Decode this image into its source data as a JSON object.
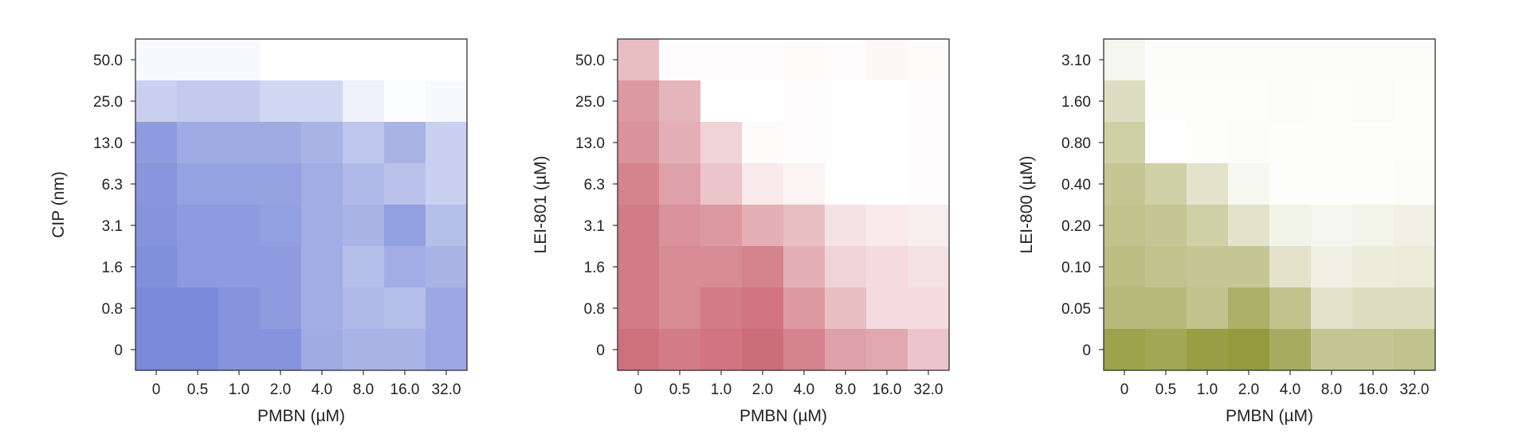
{
  "chart_data": [
    {
      "type": "heatmap",
      "xlabel": "PMBN (µM)",
      "ylabel": "CIP (nm)",
      "x_ticks": [
        "0",
        "0.5",
        "1.0",
        "2.0",
        "4.0",
        "8.0",
        "16.0",
        "32.0"
      ],
      "y_ticks": [
        "50.0",
        "25.0",
        "13.0",
        "6.3",
        "3.1",
        "1.6",
        "0.8",
        "0"
      ],
      "color": "#6f80d6",
      "values": [
        [
          0.05,
          0.05,
          0.05,
          0.0,
          0.0,
          0.0,
          0.0,
          0.0
        ],
        [
          0.4,
          0.45,
          0.45,
          0.35,
          0.35,
          0.12,
          0.02,
          0.05
        ],
        [
          0.85,
          0.72,
          0.72,
          0.72,
          0.65,
          0.5,
          0.65,
          0.4
        ],
        [
          0.9,
          0.8,
          0.8,
          0.8,
          0.7,
          0.6,
          0.52,
          0.4
        ],
        [
          0.92,
          0.85,
          0.85,
          0.82,
          0.7,
          0.65,
          0.82,
          0.55
        ],
        [
          0.95,
          0.85,
          0.85,
          0.85,
          0.7,
          0.55,
          0.7,
          0.65
        ],
        [
          1.0,
          1.0,
          0.92,
          0.85,
          0.7,
          0.6,
          0.55,
          0.75
        ],
        [
          1.0,
          1.0,
          0.92,
          0.92,
          0.72,
          0.65,
          0.65,
          0.75
        ]
      ]
    },
    {
      "type": "heatmap",
      "xlabel": "PMBN (µM)",
      "ylabel": "LEI-801 (µM)",
      "x_ticks": [
        "0",
        "0.5",
        "1.0",
        "2.0",
        "4.0",
        "8.0",
        "16.0",
        "32.0"
      ],
      "y_ticks": [
        "50.0",
        "25.0",
        "13.0",
        "6.3",
        "3.1",
        "1.6",
        "0.8",
        "0"
      ],
      "color": "#c9616f",
      "values": [
        [
          0.45,
          0.02,
          0.02,
          0.02,
          0.03,
          0.02,
          0.05,
          0.03
        ],
        [
          0.7,
          0.5,
          0.0,
          0.0,
          0.02,
          0.0,
          0.0,
          0.02
        ],
        [
          0.75,
          0.55,
          0.3,
          0.03,
          0.02,
          0.0,
          0.0,
          0.02
        ],
        [
          0.85,
          0.65,
          0.4,
          0.15,
          0.08,
          0.0,
          0.0,
          0.02
        ],
        [
          0.9,
          0.75,
          0.7,
          0.55,
          0.45,
          0.2,
          0.15,
          0.12
        ],
        [
          0.9,
          0.8,
          0.8,
          0.85,
          0.55,
          0.3,
          0.25,
          0.2
        ],
        [
          0.9,
          0.8,
          0.9,
          0.95,
          0.7,
          0.45,
          0.25,
          0.25
        ],
        [
          0.98,
          0.9,
          0.95,
          1.0,
          0.85,
          0.65,
          0.6,
          0.4
        ]
      ]
    },
    {
      "type": "heatmap",
      "xlabel": "PMBN (µM)",
      "ylabel": "LEI-800 (µM)",
      "x_ticks": [
        "0",
        "0.5",
        "1.0",
        "2.0",
        "4.0",
        "8.0",
        "16.0",
        "32.0"
      ],
      "y_ticks": [
        "3.10",
        "1.60",
        "0.80",
        "0.40",
        "0.20",
        "0.10",
        "0.05",
        "0"
      ],
      "color": "#959a3e",
      "values": [
        [
          0.1,
          0.03,
          0.03,
          0.03,
          0.03,
          0.03,
          0.03,
          0.03
        ],
        [
          0.35,
          0.02,
          0.02,
          0.02,
          0.03,
          0.02,
          0.04,
          0.02
        ],
        [
          0.5,
          0.0,
          0.02,
          0.03,
          0.02,
          0.02,
          0.02,
          0.02
        ],
        [
          0.6,
          0.5,
          0.3,
          0.08,
          0.02,
          0.02,
          0.02,
          0.04
        ],
        [
          0.65,
          0.6,
          0.5,
          0.3,
          0.13,
          0.1,
          0.12,
          0.15
        ],
        [
          0.7,
          0.65,
          0.6,
          0.6,
          0.3,
          0.15,
          0.2,
          0.22
        ],
        [
          0.75,
          0.75,
          0.65,
          0.85,
          0.65,
          0.3,
          0.35,
          0.35
        ],
        [
          1.0,
          0.95,
          1.05,
          1.1,
          0.9,
          0.6,
          0.6,
          0.65
        ]
      ]
    }
  ]
}
